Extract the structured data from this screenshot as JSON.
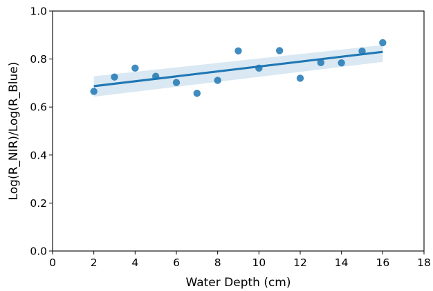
{
  "chart_data": {
    "type": "scatter",
    "title": "",
    "xlabel": "Water Depth (cm)",
    "ylabel": "Log(R_NIR)/Log(R_Blue)",
    "xlim": [
      0,
      18
    ],
    "ylim": [
      0.0,
      1.0
    ],
    "x_ticks": [
      0,
      2,
      4,
      6,
      8,
      10,
      12,
      14,
      16,
      18
    ],
    "x_tick_labels": [
      "0",
      "2",
      "4",
      "6",
      "8",
      "10",
      "12",
      "14",
      "16",
      "18"
    ],
    "y_ticks": [
      0.0,
      0.2,
      0.4,
      0.6,
      0.8,
      1.0
    ],
    "y_tick_labels": [
      "0.0",
      "0.2",
      "0.4",
      "0.6",
      "0.8",
      "1.0"
    ],
    "grid": false,
    "legend": "none",
    "points": {
      "x": [
        2,
        3,
        4,
        5,
        6,
        7,
        8,
        9,
        10,
        11,
        12,
        13,
        14,
        15,
        16
      ],
      "y": [
        0.665,
        0.725,
        0.762,
        0.728,
        0.702,
        0.657,
        0.711,
        0.834,
        0.762,
        0.835,
        0.72,
        0.785,
        0.784,
        0.833,
        0.868
      ]
    },
    "regression": {
      "x": [
        2,
        16
      ],
      "y": [
        0.687,
        0.83
      ],
      "ci_lower": [
        0.643,
        0.788
      ],
      "ci_upper": [
        0.728,
        0.858
      ]
    },
    "colors": {
      "points": "#1f77b4",
      "line": "#1f77b4",
      "ci_band": "#1f77b4"
    }
  }
}
